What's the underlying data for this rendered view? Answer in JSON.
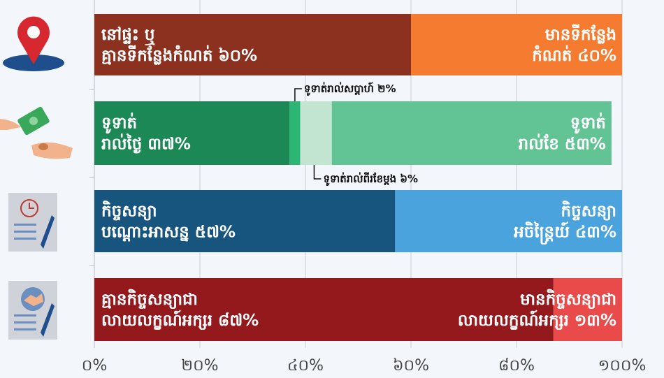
{
  "chart_data": {
    "type": "stacked-bar",
    "bars": [
      {
        "segments": [
          {
            "label": [
              "នៅផ្ទះ ឬ",
              "គ្មានទីកន្លែងកំណត់ ៦០%"
            ],
            "value": 60,
            "color": "#8c3120"
          },
          {
            "label": [
              "មានទីកន្លែង",
              "កំណត់ ៤០%"
            ],
            "value": 40,
            "color": "#f47b30"
          }
        ]
      },
      {
        "segments": [
          {
            "label": [
              "ទូទាត់",
              "រាល់ថ្ងៃ ៣៧%"
            ],
            "value": 37,
            "color": "#1b8855"
          },
          {
            "label": [
              "ទូទាត់រាល់សប្តាហ៍ ២%"
            ],
            "value": 2,
            "color": "#2bb673"
          },
          {
            "label": [
              "ទូទាត់រាល់ពីរខែម្តង ៦%"
            ],
            "value": 6,
            "color": "#c2e5d2"
          },
          {
            "label": [
              "ទូទាត់",
              "រាល់ខែ ៥៣%"
            ],
            "value": 53,
            "color": "#62c494"
          }
        ]
      },
      {
        "segments": [
          {
            "label": [
              "កិច្ចសន្យា",
              "បណ្តោះអាសន្ន ៥៧%"
            ],
            "value": 57,
            "color": "#17557f"
          },
          {
            "label": [
              "កិច្ចសន្យា",
              "អចិន្ត្រៃយ៍ ៤៣%"
            ],
            "value": 43,
            "color": "#4aa3dc"
          }
        ]
      },
      {
        "segments": [
          {
            "label": [
              "គ្មានកិច្ចសន្យាជា",
              "លាយលក្ខណ៍អក្សរ ៨៧%"
            ],
            "value": 87,
            "color": "#94191d"
          },
          {
            "label": [
              "មានកិច្ចសន្យាជា",
              "លាយលក្ខណ៍អក្សរ ១៣%"
            ],
            "value": 13,
            "color": "#e94a4a"
          }
        ]
      }
    ],
    "xlim": [
      0,
      100
    ],
    "xticks": [
      {
        "value": 0,
        "label": "០%"
      },
      {
        "value": 20,
        "label": "២០%"
      },
      {
        "value": 40,
        "label": "៤០%"
      },
      {
        "value": 60,
        "label": "៦០%"
      },
      {
        "value": 80,
        "label": "៨០%"
      },
      {
        "value": 100,
        "label": "១០០%"
      }
    ],
    "grid": true
  }
}
